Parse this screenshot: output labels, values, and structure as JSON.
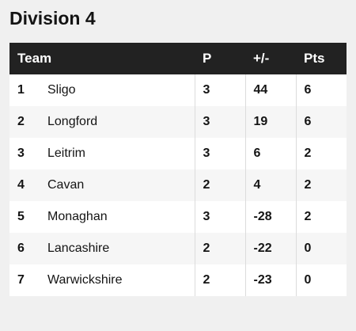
{
  "title": "Division 4",
  "table": {
    "headers": {
      "team": "Team",
      "played": "P",
      "diff": "+/-",
      "points": "Pts"
    },
    "rows": [
      {
        "pos": "1",
        "team": "Sligo",
        "played": "3",
        "diff": "44",
        "points": "6"
      },
      {
        "pos": "2",
        "team": "Longford",
        "played": "3",
        "diff": "19",
        "points": "6"
      },
      {
        "pos": "3",
        "team": "Leitrim",
        "played": "3",
        "diff": "6",
        "points": "2"
      },
      {
        "pos": "4",
        "team": "Cavan",
        "played": "2",
        "diff": "4",
        "points": "2"
      },
      {
        "pos": "5",
        "team": "Monaghan",
        "played": "3",
        "diff": "-28",
        "points": "2"
      },
      {
        "pos": "6",
        "team": "Lancashire",
        "played": "2",
        "diff": "-22",
        "points": "0"
      },
      {
        "pos": "7",
        "team": "Warwickshire",
        "played": "2",
        "diff": "-23",
        "points": "0"
      }
    ]
  },
  "colors": {
    "header_bg": "#222222",
    "header_text": "#ffffff",
    "page_bg": "#f0f0f0"
  }
}
